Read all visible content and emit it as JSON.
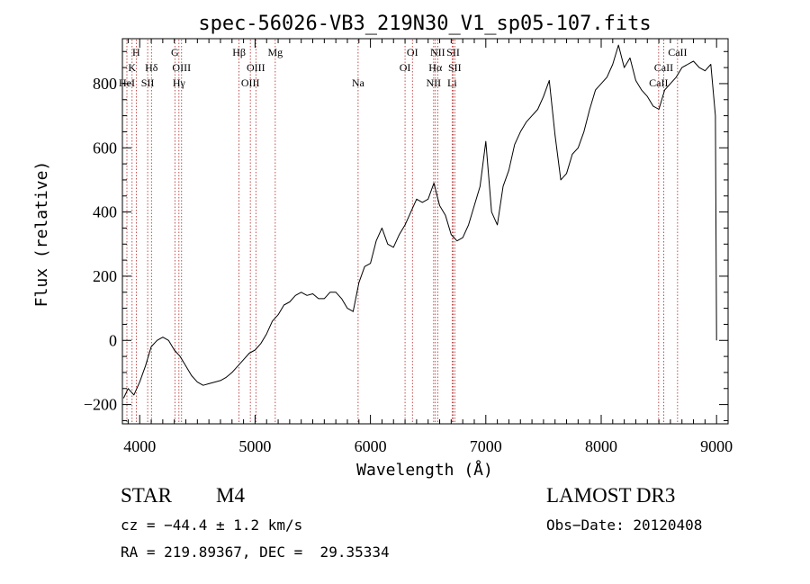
{
  "chart_data": {
    "type": "line",
    "title": "spec-56026-VB3_219N30_V1_sp05-107.fits",
    "xlabel": "Wavelength (Å)",
    "ylabel": "Flux (relative)",
    "xlim": [
      3850,
      9100
    ],
    "ylim": [
      -260,
      940
    ],
    "x_ticks": [
      4000,
      5000,
      6000,
      7000,
      8000,
      9000
    ],
    "x_tick_labels": [
      "4000",
      "5000",
      "6000",
      "7000",
      "8000",
      "9000"
    ],
    "y_ticks": [
      -200,
      0,
      200,
      400,
      600,
      800
    ],
    "y_tick_labels": [
      "−200",
      "0",
      "200",
      "400",
      "600",
      "800"
    ],
    "grid": false,
    "legend": "none",
    "series": [
      {
        "name": "flux",
        "color": "#000000",
        "x": [
          3860,
          3900,
          3950,
          4000,
          4050,
          4100,
          4150,
          4200,
          4250,
          4300,
          4350,
          4400,
          4450,
          4500,
          4550,
          4600,
          4650,
          4700,
          4750,
          4800,
          4850,
          4900,
          4950,
          5000,
          5050,
          5100,
          5150,
          5200,
          5250,
          5300,
          5350,
          5400,
          5450,
          5500,
          5550,
          5600,
          5650,
          5700,
          5750,
          5800,
          5850,
          5900,
          5950,
          6000,
          6050,
          6100,
          6150,
          6200,
          6250,
          6300,
          6350,
          6400,
          6450,
          6500,
          6550,
          6600,
          6650,
          6700,
          6750,
          6800,
          6850,
          6900,
          6950,
          7000,
          7050,
          7100,
          7150,
          7200,
          7250,
          7300,
          7350,
          7400,
          7450,
          7500,
          7550,
          7600,
          7650,
          7700,
          7750,
          7800,
          7850,
          7900,
          7950,
          8000,
          8050,
          8100,
          8150,
          8200,
          8250,
          8300,
          8350,
          8400,
          8450,
          8500,
          8550,
          8600,
          8650,
          8700,
          8750,
          8800,
          8850,
          8900,
          8950,
          8990,
          9000
        ],
        "values": [
          -180,
          -150,
          -170,
          -130,
          -80,
          -20,
          0,
          10,
          0,
          -30,
          -50,
          -80,
          -110,
          -130,
          -140,
          -135,
          -130,
          -125,
          -115,
          -100,
          -80,
          -60,
          -40,
          -30,
          -10,
          20,
          60,
          80,
          110,
          120,
          140,
          150,
          140,
          145,
          130,
          130,
          150,
          150,
          130,
          100,
          90,
          180,
          230,
          240,
          310,
          350,
          300,
          290,
          330,
          360,
          400,
          440,
          430,
          440,
          490,
          420,
          390,
          330,
          310,
          320,
          360,
          420,
          480,
          620,
          400,
          360,
          480,
          530,
          610,
          650,
          680,
          700,
          720,
          760,
          810,
          640,
          500,
          520,
          580,
          600,
          650,
          720,
          780,
          800,
          820,
          860,
          920,
          850,
          880,
          810,
          780,
          760,
          730,
          720,
          780,
          800,
          820,
          850,
          860,
          870,
          850,
          840,
          860,
          700,
          0
        ]
      }
    ],
    "annotations": [
      {
        "label": "H",
        "wavelength": 3970,
        "row": 1
      },
      {
        "label": "K",
        "wavelength": 3934,
        "row": 2
      },
      {
        "label": "HeI",
        "wavelength": 3889,
        "row": 3
      },
      {
        "label": "SII",
        "wavelength": 4069,
        "row": 3
      },
      {
        "label": "Hδ",
        "wavelength": 4102,
        "row": 2
      },
      {
        "label": "G",
        "wavelength": 4305,
        "row": 1
      },
      {
        "label": "OIII",
        "wavelength": 4363,
        "row": 2
      },
      {
        "label": "Hγ",
        "wavelength": 4340,
        "row": 3
      },
      {
        "label": "Hβ",
        "wavelength": 4861,
        "row": 1
      },
      {
        "label": "OIII",
        "wavelength": 5007,
        "row": 2
      },
      {
        "label": "OIII",
        "wavelength": 4959,
        "row": 3
      },
      {
        "label": "Mg",
        "wavelength": 5175,
        "row": 1
      },
      {
        "label": "Na",
        "wavelength": 5893,
        "row": 3
      },
      {
        "label": "OI",
        "wavelength": 6364,
        "row": 1
      },
      {
        "label": "OI",
        "wavelength": 6300,
        "row": 2
      },
      {
        "label": "NII",
        "wavelength": 6583,
        "row": 1
      },
      {
        "label": "SII",
        "wavelength": 6717,
        "row": 1
      },
      {
        "label": "Hα",
        "wavelength": 6563,
        "row": 2
      },
      {
        "label": "SII",
        "wavelength": 6731,
        "row": 2
      },
      {
        "label": "NII",
        "wavelength": 6548,
        "row": 3
      },
      {
        "label": "Li",
        "wavelength": 6708,
        "row": 3
      },
      {
        "label": "CaII",
        "wavelength": 8662,
        "row": 1
      },
      {
        "label": "CaII",
        "wavelength": 8542,
        "row": 2
      },
      {
        "label": "CaII",
        "wavelength": 8498,
        "row": 3
      }
    ]
  },
  "info": {
    "object_class": "STAR",
    "subclass": "M4",
    "survey": "LAMOST DR3",
    "cz": "cz = −44.4 ± 1.2 km/s",
    "obs_date": "Obs−Date: 20120408",
    "coords": "RA = 219.89367, DEC =  29.35334"
  }
}
